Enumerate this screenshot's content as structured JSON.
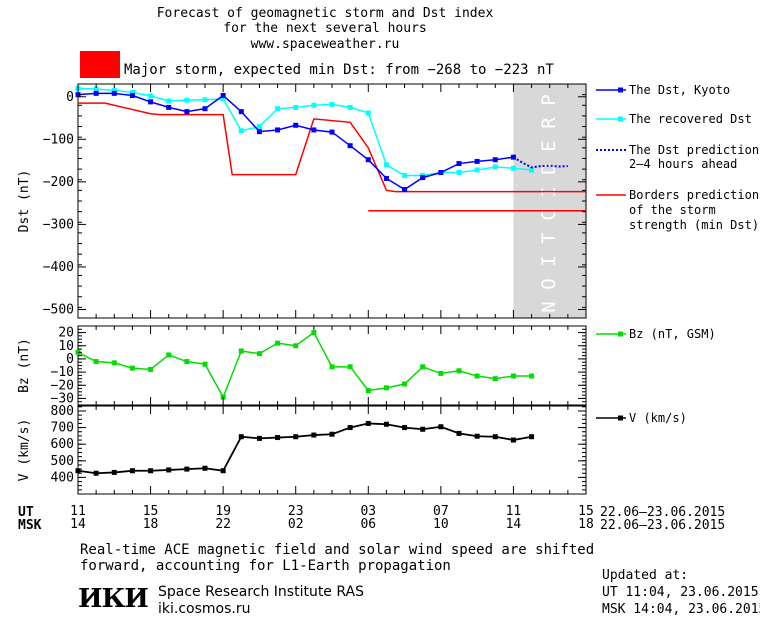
{
  "header": {
    "line1": "Forecast of geomagnetic storm and Dst index",
    "line2": "for the next several hours",
    "line3": "www.spaceweather.ru",
    "alert": "Major storm, expected min Dst: from −268 to −223 nT",
    "alert_color": "#ff0000"
  },
  "legend": {
    "dst_kyoto": "The Dst, Kyoto",
    "dst_recovered": "The recovered Dst",
    "pred_line1": "The Dst prediction",
    "pred_line2": "2–4 hours ahead",
    "border_line1": "Borders prediction",
    "border_line2": "of the storm",
    "border_line3": "strength (min Dst)",
    "bz": "Bz (nT, GSM)",
    "v": "V (km/s)"
  },
  "prediction_label": "PREDICTION",
  "colors": {
    "kyoto": "#0000ff",
    "recovered": "#00ffff",
    "prediction": "#0000ff",
    "borders": "#ff0000",
    "bz": "#00dd00",
    "v": "#000000",
    "prediction_band": "#d8d8d8"
  },
  "time_axis": {
    "ut_label": "UT",
    "msk_label": "MSK",
    "ut_ticks": [
      "11",
      "15",
      "19",
      "23",
      "03",
      "07",
      "11",
      "15"
    ],
    "msk_ticks": [
      "14",
      "18",
      "22",
      "02",
      "06",
      "10",
      "14",
      "18"
    ],
    "ut_dates": "22.06–23.06.2015",
    "msk_dates": "22.06–23.06.2015"
  },
  "footer": {
    "note_line1": "Real-time ACE magnetic field and solar wind speed are shifted",
    "note_line2": "forward, accounting for L1-Earth propagation",
    "logo": "ИКИ",
    "institute": "Space Research Institute RAS",
    "site": "iki.cosmos.ru",
    "updated_label": "Updated at:",
    "updated_ut": "UT  11:04, 23.06.2015",
    "updated_msk": "MSK 14:04, 23.06.2015"
  },
  "chart_data": [
    {
      "type": "line",
      "ylabel": "Dst (nT)",
      "ylim": [
        -520,
        30
      ],
      "yticks": [
        0,
        -100,
        -200,
        -300,
        -400,
        -500
      ],
      "xlim_hours_from_11UT_22June": [
        0,
        28
      ],
      "prediction_window_hours": [
        24,
        28
      ],
      "series": [
        {
          "name": "The Dst, Kyoto",
          "x": [
            0,
            1,
            2,
            3,
            4,
            5,
            6,
            7,
            8,
            9,
            10,
            11,
            12,
            13,
            14,
            15,
            16,
            17,
            18,
            19,
            20,
            21,
            22,
            23,
            24
          ],
          "y": [
            5,
            8,
            8,
            3,
            -12,
            -25,
            -35,
            -28,
            3,
            -35,
            -82,
            -78,
            -67,
            -78,
            -83,
            -115,
            -148,
            -192,
            -218,
            -190,
            -178,
            -157,
            -152,
            -148,
            -142
          ]
        },
        {
          "name": "The recovered Dst",
          "x": [
            0,
            1,
            2,
            3,
            4,
            5,
            6,
            7,
            8,
            9,
            10,
            11,
            12,
            13,
            14,
            15,
            16,
            17,
            18,
            19,
            20,
            21,
            22,
            23,
            24,
            25
          ],
          "y": [
            20,
            18,
            15,
            10,
            2,
            -10,
            -8,
            -7,
            -5,
            -80,
            -70,
            -28,
            -25,
            -20,
            -18,
            -25,
            -38,
            -160,
            -185,
            -185,
            -178,
            -178,
            -172,
            -165,
            -168,
            -172
          ]
        },
        {
          "name": "The Dst prediction",
          "x": [
            24,
            24.5,
            25,
            25.5,
            26,
            26.5,
            27
          ],
          "y": [
            -142,
            -155,
            -166,
            -163,
            -162,
            -164,
            -163
          ]
        },
        {
          "name": "Borders prediction",
          "x": [
            0,
            1.5,
            4,
            4.5,
            8,
            8.5,
            12,
            13,
            15,
            16,
            17,
            17.5,
            28
          ],
          "y": [
            -15,
            -15,
            -40,
            -42,
            -42,
            -183,
            -183,
            -52,
            -60,
            -120,
            -220,
            -223,
            -223
          ]
        },
        {
          "x": [
            16,
            28
          ],
          "y": [
            -268,
            -268
          ]
        }
      ]
    },
    {
      "type": "line",
      "ylabel": "Bz (nT)",
      "ylim": [
        -35,
        25
      ],
      "yticks": [
        20,
        10,
        0,
        -10,
        -20,
        -30
      ],
      "series": [
        {
          "name": "Bz (nT, GSM)",
          "x": [
            0,
            1,
            2,
            3,
            4,
            5,
            6,
            7,
            8,
            9,
            10,
            11,
            12,
            13,
            14,
            15,
            16,
            17,
            18,
            19,
            20,
            21,
            22,
            23,
            24,
            25
          ],
          "y": [
            5,
            -2,
            -3,
            -7,
            -8,
            3,
            -2,
            -4,
            -29,
            6,
            4,
            12,
            10,
            20,
            -6,
            -6,
            -24,
            -22,
            -19,
            -6,
            -11,
            -9,
            -13,
            -15,
            -13,
            -13
          ]
        }
      ]
    },
    {
      "type": "line",
      "ylabel": "V (km/s)",
      "ylim": [
        300,
        830
      ],
      "yticks": [
        800,
        700,
        600,
        500,
        400
      ],
      "series": [
        {
          "name": "V (km/s)",
          "x": [
            0,
            1,
            2,
            3,
            4,
            5,
            6,
            7,
            8,
            9,
            10,
            11,
            12,
            13,
            14,
            15,
            16,
            17,
            18,
            19,
            20,
            21,
            22,
            23,
            24,
            25
          ],
          "y": [
            440,
            425,
            430,
            440,
            440,
            445,
            450,
            455,
            440,
            645,
            635,
            640,
            645,
            655,
            660,
            700,
            725,
            720,
            700,
            690,
            705,
            665,
            648,
            645,
            625,
            645
          ]
        }
      ]
    }
  ]
}
